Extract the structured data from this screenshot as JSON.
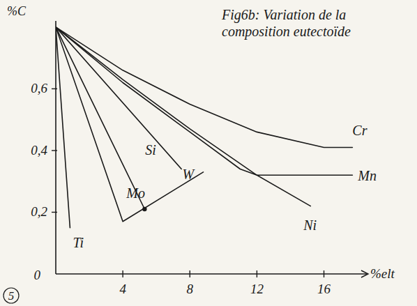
{
  "chart_data": {
    "type": "line",
    "title": "Fig6b: Variation de la composition eutectoïde",
    "x_label": "%elt",
    "y_label": "%C",
    "annotations": [
      "5"
    ],
    "xlim": [
      0,
      18.6
    ],
    "ylim": [
      0,
      0.82
    ],
    "xticks": [
      4,
      8,
      12,
      16
    ],
    "yticks": [
      0,
      {
        "value": 0.2,
        "label": "0,2"
      },
      {
        "value": 0.4,
        "label": "0,4"
      },
      {
        "value": 0.6,
        "label": "0,6"
      }
    ],
    "grid": false,
    "color": "#1a1a1a",
    "series": [
      {
        "name": "Ti",
        "marker": "none",
        "x": [
          0,
          0.85
        ],
        "values": [
          0.8,
          0.15
        ]
      },
      {
        "name": "Mo",
        "marker": "circle",
        "x": [
          0,
          5.3
        ],
        "values": [
          0.8,
          0.21
        ]
      },
      {
        "name": "W",
        "marker": "none",
        "x": [
          0,
          4,
          8.8
        ],
        "values": [
          0.8,
          0.17,
          0.33
        ]
      },
      {
        "name": "Si",
        "marker": "none",
        "x": [
          0,
          7.5
        ],
        "values": [
          0.8,
          0.34
        ]
      },
      {
        "name": "Ni",
        "marker": "none",
        "x": [
          0,
          4,
          8,
          12,
          15.2
        ],
        "values": [
          0.8,
          0.63,
          0.47,
          0.32,
          0.22
        ]
      },
      {
        "name": "Mn",
        "marker": "none",
        "x": [
          0,
          4,
          8,
          11,
          12,
          17.7
        ],
        "values": [
          0.8,
          0.62,
          0.46,
          0.34,
          0.32,
          0.32
        ]
      },
      {
        "name": "Cr",
        "marker": "none",
        "x": [
          0,
          4,
          8,
          12,
          16,
          17.7
        ],
        "values": [
          0.8,
          0.66,
          0.55,
          0.46,
          0.41,
          0.41
        ]
      }
    ]
  }
}
